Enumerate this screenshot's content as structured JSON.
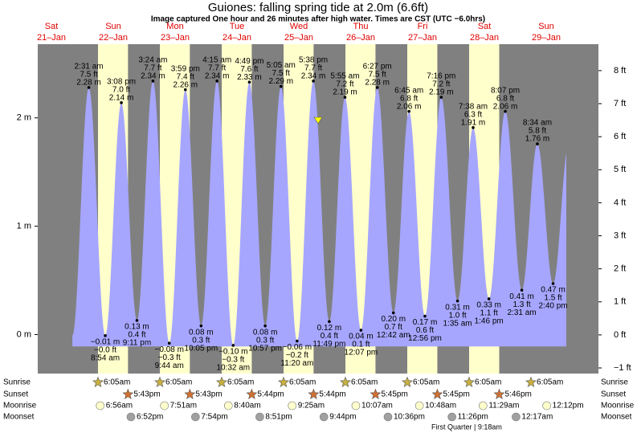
{
  "chart_data": {
    "type": "tide",
    "title": "Guiones: falling  spring tide at 2.0m (6.6ft)",
    "subtitle": "Image captured One hour and 26 minutes after high water. Times are CST (UTC −6.0hrs)",
    "ylim": [
      -0.36,
      2.68
    ],
    "yticks": [
      {
        "value": 0,
        "label": "0 m"
      },
      {
        "value": 1,
        "label": "1 m"
      },
      {
        "value": 2,
        "label": "2 m"
      }
    ],
    "y2lim": [
      -1.17,
      8.8
    ],
    "y2ticks": [
      {
        "value": -1,
        "label": "−1 ft"
      },
      {
        "value": 0,
        "label": "0 ft"
      },
      {
        "value": 1,
        "label": "1 ft"
      },
      {
        "value": 2,
        "label": "2 ft"
      },
      {
        "value": 3,
        "label": "3 ft"
      },
      {
        "value": 4,
        "label": "4 ft"
      },
      {
        "value": 5,
        "label": "5 ft"
      },
      {
        "value": 6,
        "label": "6 ft"
      },
      {
        "value": 7,
        "label": "7 ft"
      },
      {
        "value": 8,
        "label": "8 ft"
      }
    ],
    "row_labels": {
      "sunrise": "Sunrise",
      "sunset": "Sunset",
      "moonrise": "Moonrise",
      "moonset": "Moonset"
    },
    "moon_phase": "First Quarter | 9:18am",
    "days": [
      {
        "name": "Sat",
        "date": "21–Jan",
        "sunrise": null,
        "sunset": null,
        "moonrise": null,
        "moonset": null,
        "tides": []
      },
      {
        "name": "Sun",
        "date": "22–Jan",
        "sunrise": "6:05am",
        "sunset": "5:43pm",
        "moonrise": "6:56am",
        "moonset": "6:52pm",
        "tides": [
          {
            "time": "2:31 am",
            "m": 2.28,
            "m_label": "2.28 m",
            "ft_label": "7.5 ft"
          },
          {
            "time": "8:54 am",
            "m": -0.01,
            "m_label": "−0.01 m",
            "ft_label": "−0.0 ft"
          },
          {
            "time": "3:08 pm",
            "m": 2.14,
            "m_label": "2.14 m",
            "ft_label": "7.0 ft"
          },
          {
            "time": "9:11 pm",
            "m": 0.13,
            "m_label": "0.13 m",
            "ft_label": "0.4 ft"
          }
        ]
      },
      {
        "name": "Mon",
        "date": "23–Jan",
        "sunrise": "6:05am",
        "sunset": "5:43pm",
        "moonrise": "7:51am",
        "moonset": "7:54pm",
        "tides": [
          {
            "time": "3:24 am",
            "m": 2.34,
            "m_label": "2.34 m",
            "ft_label": "7.7 ft"
          },
          {
            "time": "9:44 am",
            "m": -0.08,
            "m_label": "−0.08 m",
            "ft_label": "−0.3 ft"
          },
          {
            "time": "3:59 pm",
            "m": 2.26,
            "m_label": "2.26 m",
            "ft_label": "7.4 ft"
          },
          {
            "time": "10:05 pm",
            "m": 0.08,
            "m_label": "0.08 m",
            "ft_label": "0.3 ft"
          }
        ]
      },
      {
        "name": "Tue",
        "date": "24–Jan",
        "sunrise": "6:05am",
        "sunset": "5:44pm",
        "moonrise": "8:40am",
        "moonset": "8:51pm",
        "tides": [
          {
            "time": "4:15 am",
            "m": 2.34,
            "m_label": "2.34 m",
            "ft_label": "7.7 ft"
          },
          {
            "time": "10:32 am",
            "m": -0.1,
            "m_label": "−0.10 m",
            "ft_label": "−0.3 ft"
          },
          {
            "time": "4:49 pm",
            "m": 2.33,
            "m_label": "2.33 m",
            "ft_label": "7.6 ft"
          },
          {
            "time": "10:57 pm",
            "m": 0.08,
            "m_label": "0.08 m",
            "ft_label": "0.3 ft"
          }
        ]
      },
      {
        "name": "Wed",
        "date": "25–Jan",
        "sunrise": "6:05am",
        "sunset": "5:44pm",
        "moonrise": "9:25am",
        "moonset": "9:44pm",
        "tides": [
          {
            "time": "5:05 am",
            "m": 2.29,
            "m_label": "2.29 m",
            "ft_label": "7.5 ft"
          },
          {
            "time": "11:20 am",
            "m": -0.06,
            "m_label": "−0.06 m",
            "ft_label": "−0.2 ft"
          },
          {
            "time": "5:38 pm",
            "m": 2.34,
            "m_label": "2.34 m",
            "ft_label": "7.7 ft"
          },
          {
            "time": "11:49 pm",
            "m": 0.12,
            "m_label": "0.12 m",
            "ft_label": "0.4 ft"
          }
        ]
      },
      {
        "name": "Thu",
        "date": "26–Jan",
        "sunrise": "6:05am",
        "sunset": "5:45pm",
        "moonrise": "10:07am",
        "moonset": "10:36pm",
        "tides": [
          {
            "time": "5:55 am",
            "m": 2.19,
            "m_label": "2.19 m",
            "ft_label": "7.2 ft"
          },
          {
            "time": "12:07 pm",
            "m": 0.04,
            "m_label": "0.04 m",
            "ft_label": "0.1 ft"
          },
          {
            "time": "6:27 pm",
            "m": 2.28,
            "m_label": "2.28 m",
            "ft_label": "7.5 ft"
          }
        ]
      },
      {
        "name": "Fri",
        "date": "27–Jan",
        "sunrise": "6:05am",
        "sunset": "5:45pm",
        "moonrise": "10:48am",
        "moonset": "11:26pm",
        "tides": [
          {
            "time": "12:42 am",
            "m": 0.2,
            "m_label": "0.20 m",
            "ft_label": "0.7 ft"
          },
          {
            "time": "6:45 am",
            "m": 2.06,
            "m_label": "2.06 m",
            "ft_label": "6.8 ft"
          },
          {
            "time": "12:56 pm",
            "m": 0.17,
            "m_label": "0.17 m",
            "ft_label": "0.6 ft"
          },
          {
            "time": "7:16 pm",
            "m": 2.19,
            "m_label": "2.19 m",
            "ft_label": "7.2 ft"
          }
        ]
      },
      {
        "name": "Sat",
        "date": "28–Jan",
        "sunrise": "6:05am",
        "sunset": "5:46pm",
        "moonrise": "11:29am",
        "moonset": null,
        "tides": [
          {
            "time": "1:35 am",
            "m": 0.31,
            "m_label": "0.31 m",
            "ft_label": "1.0 ft"
          },
          {
            "time": "7:38 am",
            "m": 1.91,
            "m_label": "1.91 m",
            "ft_label": "6.3 ft"
          },
          {
            "time": "1:46 pm",
            "m": 0.33,
            "m_label": "0.33 m",
            "ft_label": "1.1 ft"
          },
          {
            "time": "8:07 pm",
            "m": 2.06,
            "m_label": "2.06 m",
            "ft_label": "6.8 ft"
          }
        ]
      },
      {
        "name": "Sun",
        "date": "29–Jan",
        "sunrise": "6:05am",
        "sunset": null,
        "moonrise": "12:12pm",
        "moonset": "12:17am",
        "tides": [
          {
            "time": "2:31 am",
            "m": 0.41,
            "m_label": "0.41 m",
            "ft_label": "1.3 ft"
          },
          {
            "time": "8:34 am",
            "m": 1.76,
            "m_label": "1.76 m",
            "ft_label": "5.8 ft"
          },
          {
            "time": "2:40 pm",
            "m": 0.47,
            "m_label": "0.47 m",
            "ft_label": "1.5 ft"
          }
        ]
      }
    ]
  }
}
